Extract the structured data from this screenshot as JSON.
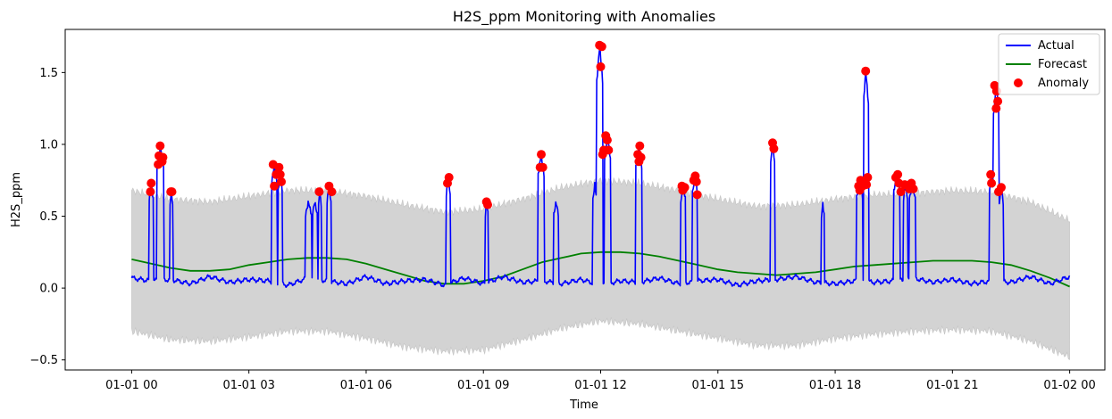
{
  "chart_data": {
    "type": "line",
    "title": "H2S_ppm Monitoring with Anomalies",
    "xlabel": "Time",
    "ylabel": "H2S_ppm",
    "x_range_hours": [
      -1.7,
      24.9
    ],
    "ylim": [
      -0.57,
      1.8
    ],
    "x_ticks": [
      {
        "hour": 0,
        "label": "01-01 00"
      },
      {
        "hour": 3,
        "label": "01-01 03"
      },
      {
        "hour": 6,
        "label": "01-01 06"
      },
      {
        "hour": 9,
        "label": "01-01 09"
      },
      {
        "hour": 12,
        "label": "01-01 12"
      },
      {
        "hour": 15,
        "label": "01-01 15"
      },
      {
        "hour": 18,
        "label": "01-01 18"
      },
      {
        "hour": 21,
        "label": "01-01 21"
      },
      {
        "hour": 24,
        "label": "01-02 00"
      }
    ],
    "y_ticks": [
      {
        "value": -0.5,
        "label": "−0.5"
      },
      {
        "value": 0.0,
        "label": "0.0"
      },
      {
        "value": 0.5,
        "label": "0.5"
      },
      {
        "value": 1.0,
        "label": "1.0"
      },
      {
        "value": 1.5,
        "label": "1.5"
      }
    ],
    "grid": false,
    "legend_position": "top-right",
    "colors": {
      "actual": "#0000ff",
      "forecast": "#008000",
      "anomaly": "#ff0000",
      "band": "#d3d3d3"
    },
    "series": [
      {
        "name": "Actual",
        "style": "line",
        "baseline": [
          [
            0,
            0.07
          ],
          [
            0.5,
            0.05
          ],
          [
            1,
            0.06
          ],
          [
            1.5,
            0.03
          ],
          [
            2,
            0.08
          ],
          [
            2.5,
            0.04
          ],
          [
            3,
            0.06
          ],
          [
            3.5,
            0.05
          ],
          [
            4,
            0.02
          ],
          [
            4.5,
            0.07
          ],
          [
            5,
            0.05
          ],
          [
            5.5,
            0.03
          ],
          [
            6,
            0.08
          ],
          [
            6.5,
            0.03
          ],
          [
            7,
            0.05
          ],
          [
            7.5,
            0.06
          ],
          [
            8,
            0.02
          ],
          [
            8.5,
            0.07
          ],
          [
            9,
            0.03
          ],
          [
            9.5,
            0.08
          ],
          [
            10,
            0.04
          ],
          [
            10.5,
            0.05
          ],
          [
            11,
            0.03
          ],
          [
            11.5,
            0.06
          ],
          [
            12,
            0.02
          ],
          [
            12.5,
            0.05
          ],
          [
            13,
            0.04
          ],
          [
            13.5,
            0.07
          ],
          [
            14,
            0.03
          ],
          [
            14.5,
            0.05
          ],
          [
            15,
            0.06
          ],
          [
            15.5,
            0.02
          ],
          [
            16,
            0.05
          ],
          [
            16.5,
            0.06
          ],
          [
            17,
            0.08
          ],
          [
            17.5,
            0.04
          ],
          [
            18,
            0.03
          ],
          [
            18.5,
            0.05
          ],
          [
            19,
            0.04
          ],
          [
            19.5,
            0.05
          ],
          [
            20,
            0.07
          ],
          [
            20.5,
            0.04
          ],
          [
            21,
            0.06
          ],
          [
            21.5,
            0.03
          ],
          [
            22,
            0.05
          ],
          [
            22.5,
            0.04
          ],
          [
            23,
            0.08
          ],
          [
            23.5,
            0.03
          ],
          [
            24,
            0.08
          ]
        ],
        "spikes": [
          {
            "start": 0.45,
            "end": 0.55,
            "peak": 0.73
          },
          {
            "start": 0.65,
            "end": 0.82,
            "peak": 0.99
          },
          {
            "start": 0.98,
            "end": 1.05,
            "peak": 0.68
          },
          {
            "start": 3.58,
            "end": 3.72,
            "peak": 0.86
          },
          {
            "start": 3.75,
            "end": 3.85,
            "peak": 0.8
          },
          {
            "start": 4.45,
            "end": 4.6,
            "peak": 0.6
          },
          {
            "start": 4.62,
            "end": 4.75,
            "peak": 0.6
          },
          {
            "start": 4.78,
            "end": 4.85,
            "peak": 0.67
          },
          {
            "start": 5.0,
            "end": 5.1,
            "peak": 0.71
          },
          {
            "start": 8.05,
            "end": 8.15,
            "peak": 0.77
          },
          {
            "start": 9.05,
            "end": 9.12,
            "peak": 0.6
          },
          {
            "start": 10.4,
            "end": 10.55,
            "peak": 0.93
          },
          {
            "start": 10.8,
            "end": 10.92,
            "peak": 0.6
          },
          {
            "start": 11.8,
            "end": 11.9,
            "peak": 0.72
          },
          {
            "start": 11.9,
            "end": 12.05,
            "peak": 1.69
          },
          {
            "start": 12.1,
            "end": 12.25,
            "peak": 1.06
          },
          {
            "start": 12.9,
            "end": 13.05,
            "peak": 0.99
          },
          {
            "start": 14.05,
            "end": 14.18,
            "peak": 0.71
          },
          {
            "start": 14.35,
            "end": 14.48,
            "peak": 0.78
          },
          {
            "start": 16.35,
            "end": 16.45,
            "peak": 1.02
          },
          {
            "start": 17.65,
            "end": 17.72,
            "peak": 0.59
          },
          {
            "start": 18.55,
            "end": 18.7,
            "peak": 0.75
          },
          {
            "start": 18.72,
            "end": 18.85,
            "peak": 1.51
          },
          {
            "start": 19.5,
            "end": 19.65,
            "peak": 0.79
          },
          {
            "start": 19.75,
            "end": 19.85,
            "peak": 0.73
          },
          {
            "start": 19.9,
            "end": 20.05,
            "peak": 0.73
          },
          {
            "start": 21.95,
            "end": 22.05,
            "peak": 0.79
          },
          {
            "start": 22.05,
            "end": 22.2,
            "peak": 1.41
          },
          {
            "start": 22.2,
            "end": 22.3,
            "peak": 0.7
          }
        ]
      },
      {
        "name": "Forecast",
        "style": "line",
        "points": [
          [
            0,
            0.2
          ],
          [
            0.5,
            0.17
          ],
          [
            1,
            0.14
          ],
          [
            1.5,
            0.12
          ],
          [
            2,
            0.12
          ],
          [
            2.5,
            0.13
          ],
          [
            3,
            0.16
          ],
          [
            3.5,
            0.18
          ],
          [
            4,
            0.2
          ],
          [
            4.5,
            0.21
          ],
          [
            5,
            0.21
          ],
          [
            5.5,
            0.2
          ],
          [
            6,
            0.17
          ],
          [
            6.5,
            0.13
          ],
          [
            7,
            0.09
          ],
          [
            7.5,
            0.05
          ],
          [
            8,
            0.03
          ],
          [
            8.5,
            0.03
          ],
          [
            9,
            0.05
          ],
          [
            9.5,
            0.08
          ],
          [
            10,
            0.13
          ],
          [
            10.5,
            0.18
          ],
          [
            11,
            0.21
          ],
          [
            11.5,
            0.24
          ],
          [
            12,
            0.25
          ],
          [
            12.5,
            0.25
          ],
          [
            13,
            0.24
          ],
          [
            13.5,
            0.22
          ],
          [
            14,
            0.19
          ],
          [
            14.5,
            0.16
          ],
          [
            15,
            0.13
          ],
          [
            15.5,
            0.11
          ],
          [
            16,
            0.1
          ],
          [
            16.5,
            0.09
          ],
          [
            17,
            0.1
          ],
          [
            17.5,
            0.11
          ],
          [
            18,
            0.13
          ],
          [
            18.5,
            0.15
          ],
          [
            19,
            0.16
          ],
          [
            19.5,
            0.17
          ],
          [
            20,
            0.18
          ],
          [
            20.5,
            0.19
          ],
          [
            21,
            0.19
          ],
          [
            21.5,
            0.19
          ],
          [
            22,
            0.18
          ],
          [
            22.5,
            0.16
          ],
          [
            23,
            0.12
          ],
          [
            23.5,
            0.07
          ],
          [
            24,
            0.01
          ]
        ]
      },
      {
        "name": "Anomaly",
        "style": "scatter",
        "points": [
          [
            0.48,
            0.67
          ],
          [
            0.5,
            0.73
          ],
          [
            0.68,
            0.86
          ],
          [
            0.7,
            0.92
          ],
          [
            0.73,
            0.99
          ],
          [
            0.78,
            0.88
          ],
          [
            0.8,
            0.91
          ],
          [
            1.0,
            0.67
          ],
          [
            1.03,
            0.67
          ],
          [
            3.62,
            0.86
          ],
          [
            3.65,
            0.71
          ],
          [
            3.7,
            0.79
          ],
          [
            3.77,
            0.84
          ],
          [
            3.8,
            0.79
          ],
          [
            3.83,
            0.74
          ],
          [
            4.8,
            0.67
          ],
          [
            5.05,
            0.71
          ],
          [
            5.12,
            0.67
          ],
          [
            8.08,
            0.73
          ],
          [
            8.12,
            0.77
          ],
          [
            9.08,
            0.6
          ],
          [
            9.11,
            0.58
          ],
          [
            10.45,
            0.84
          ],
          [
            10.48,
            0.93
          ],
          [
            10.52,
            0.84
          ],
          [
            11.97,
            1.69
          ],
          [
            12.0,
            1.54
          ],
          [
            12.03,
            1.68
          ],
          [
            12.05,
            0.93
          ],
          [
            12.08,
            0.96
          ],
          [
            12.13,
            1.06
          ],
          [
            12.17,
            1.03
          ],
          [
            12.2,
            0.96
          ],
          [
            12.95,
            0.93
          ],
          [
            12.98,
            0.88
          ],
          [
            13.0,
            0.99
          ],
          [
            13.03,
            0.91
          ],
          [
            14.08,
            0.71
          ],
          [
            14.1,
            0.68
          ],
          [
            14.15,
            0.7
          ],
          [
            14.38,
            0.75
          ],
          [
            14.42,
            0.78
          ],
          [
            14.45,
            0.74
          ],
          [
            14.47,
            0.65
          ],
          [
            16.4,
            1.01
          ],
          [
            16.43,
            0.97
          ],
          [
            18.6,
            0.71
          ],
          [
            18.63,
            0.68
          ],
          [
            18.65,
            0.75
          ],
          [
            18.7,
            0.71
          ],
          [
            18.78,
            1.51
          ],
          [
            18.8,
            0.72
          ],
          [
            18.83,
            0.77
          ],
          [
            19.55,
            0.77
          ],
          [
            19.6,
            0.79
          ],
          [
            19.63,
            0.73
          ],
          [
            19.68,
            0.67
          ],
          [
            19.78,
            0.72
          ],
          [
            19.9,
            0.69
          ],
          [
            19.95,
            0.73
          ],
          [
            20.0,
            0.69
          ],
          [
            21.98,
            0.79
          ],
          [
            22.0,
            0.73
          ],
          [
            22.08,
            1.41
          ],
          [
            22.12,
            1.25
          ],
          [
            22.13,
            1.37
          ],
          [
            22.16,
            1.3
          ],
          [
            22.18,
            0.67
          ],
          [
            22.25,
            0.7
          ]
        ]
      }
    ],
    "confidence_band": {
      "upper": [
        [
          0,
          0.68
        ],
        [
          1,
          0.62
        ],
        [
          2,
          0.6
        ],
        [
          3,
          0.64
        ],
        [
          4,
          0.68
        ],
        [
          5,
          0.68
        ],
        [
          6,
          0.64
        ],
        [
          7,
          0.58
        ],
        [
          8,
          0.53
        ],
        [
          9,
          0.55
        ],
        [
          10,
          0.62
        ],
        [
          11,
          0.7
        ],
        [
          12,
          0.75
        ],
        [
          13,
          0.73
        ],
        [
          14,
          0.68
        ],
        [
          15,
          0.62
        ],
        [
          16,
          0.57
        ],
        [
          17,
          0.58
        ],
        [
          18,
          0.62
        ],
        [
          19,
          0.65
        ],
        [
          20,
          0.66
        ],
        [
          21,
          0.68
        ],
        [
          22,
          0.67
        ],
        [
          23,
          0.6
        ],
        [
          24,
          0.47
        ]
      ],
      "lower": [
        [
          0,
          -0.3
        ],
        [
          1,
          -0.36
        ],
        [
          2,
          -0.37
        ],
        [
          3,
          -0.34
        ],
        [
          4,
          -0.3
        ],
        [
          5,
          -0.3
        ],
        [
          6,
          -0.35
        ],
        [
          7,
          -0.41
        ],
        [
          8,
          -0.44
        ],
        [
          9,
          -0.43
        ],
        [
          10,
          -0.36
        ],
        [
          11,
          -0.28
        ],
        [
          12,
          -0.23
        ],
        [
          13,
          -0.25
        ],
        [
          14,
          -0.3
        ],
        [
          15,
          -0.35
        ],
        [
          16,
          -0.4
        ],
        [
          17,
          -0.4
        ],
        [
          18,
          -0.35
        ],
        [
          19,
          -0.32
        ],
        [
          20,
          -0.3
        ],
        [
          21,
          -0.29
        ],
        [
          22,
          -0.3
        ],
        [
          23,
          -0.37
        ],
        [
          24,
          -0.48
        ]
      ]
    }
  }
}
